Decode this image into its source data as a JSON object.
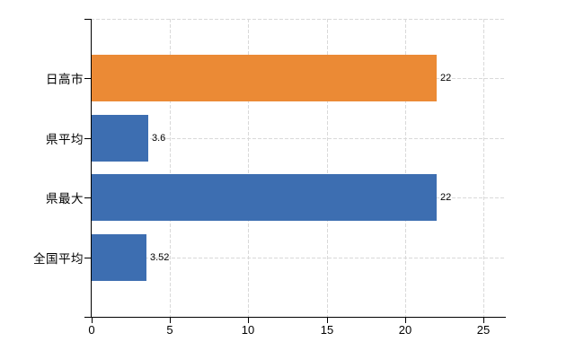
{
  "chart_data": {
    "type": "bar",
    "orientation": "horizontal",
    "title": "",
    "xlabel": "",
    "ylabel": "",
    "categories": [
      "日高市",
      "県平均",
      "県最大",
      "全国平均"
    ],
    "values": [
      22,
      3.6,
      22,
      3.52
    ],
    "value_labels": [
      "22",
      "3.6",
      "22",
      "3.52"
    ],
    "bar_colors": [
      "#EB8A35",
      "#3D6EB1",
      "#3D6EB1",
      "#3D6EB1"
    ],
    "x_ticks": [
      0,
      5,
      10,
      15,
      20,
      25
    ],
    "x_tick_labels": [
      "0",
      "5",
      "10",
      "15",
      "20",
      "25"
    ],
    "xlim": [
      0,
      26.4
    ],
    "grid": "dashed",
    "legend": "none",
    "colors": {
      "axis": "#000000",
      "gridline": "#d9d9d9",
      "text": "#000000",
      "background": "#ffffff",
      "bar_orange": "#EB8A35",
      "bar_blue": "#3D6EB1"
    }
  }
}
